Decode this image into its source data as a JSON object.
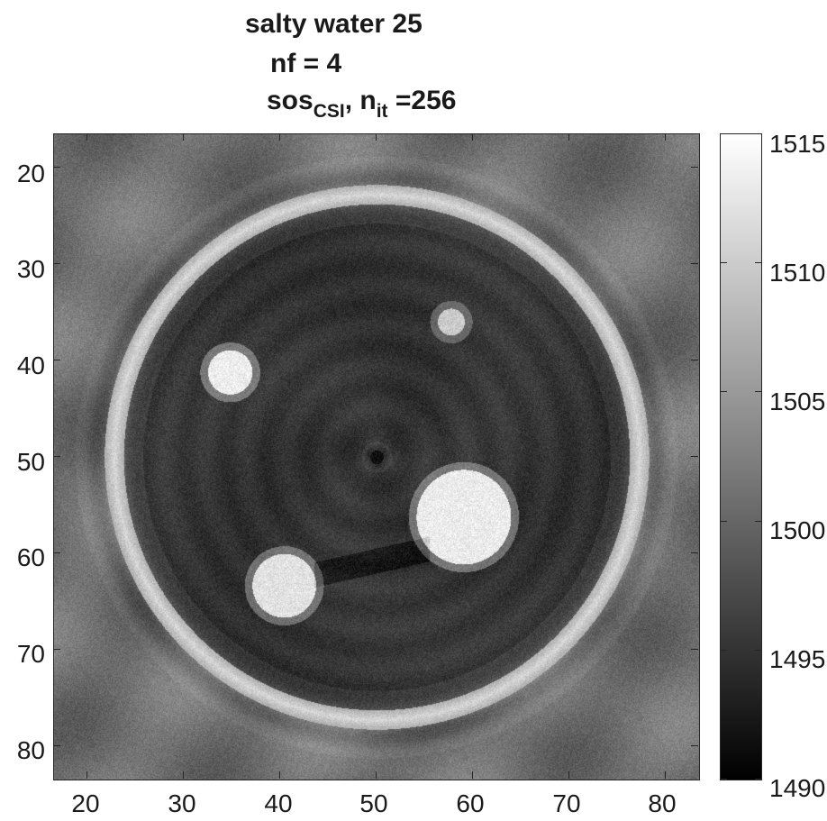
{
  "title": {
    "line1": "salty water 25",
    "line2": "nf = 4",
    "line3_main": "sos",
    "line3_sub": "CSI",
    "line3_mid": ", n",
    "line3_sub2": "it",
    "line3_tail": " =256"
  },
  "image": {
    "colormap": "gray",
    "x_axis": {
      "ticks": [
        "20",
        "30",
        "40",
        "50",
        "60",
        "70",
        "80"
      ],
      "range": [
        16.5,
        83.5
      ]
    },
    "y_axis": {
      "ticks": [
        "20",
        "30",
        "40",
        "50",
        "60",
        "70",
        "80"
      ],
      "range": [
        16.5,
        83.5
      ],
      "direction": "reverse"
    }
  },
  "colorbar": {
    "ticks": [
      "1515",
      "1510",
      "1505",
      "1500",
      "1495",
      "1490"
    ],
    "range": [
      1490,
      1515
    ]
  }
}
